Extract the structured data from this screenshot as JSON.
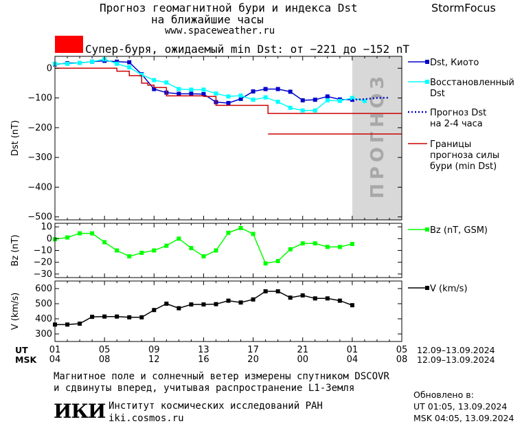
{
  "header": {
    "title_line1": "Прогноз геомагнитной бури и индекса Dst",
    "title_line2": "на ближайшие часы",
    "site": "www.spaceweather.ru",
    "brand": "StormFocus"
  },
  "alert": {
    "color": "#ff0000",
    "text": "Супер-буря, ожидаемый min Dst: от −221 до −152 nT"
  },
  "forecast_label": "ПРОГНОЗ",
  "legend": {
    "dst": "Dst, Киото",
    "restored_1": "Восстановленный",
    "restored_2": "Dst",
    "forecast_1": "Прогноз Dst",
    "forecast_2": "на 2-4 часа",
    "bounds_1": "Границы",
    "bounds_2": "прогноза силы",
    "bounds_3": "бури (min Dst)",
    "bz": "Bz (nT, GSM)",
    "v": "V (km/s)"
  },
  "time_axis": {
    "ut_label": "UT",
    "msk_label": "MSK",
    "ut_ticks": [
      "01",
      "05",
      "09",
      "13",
      "17",
      "21",
      "01",
      "05"
    ],
    "msk_ticks": [
      "04",
      "08",
      "12",
      "16",
      "20",
      "00",
      "04",
      "08"
    ],
    "ut_range": "12.09–13.09.2024",
    "msk_range": "12.09–13.09.2024"
  },
  "footer": {
    "note_1": "Магнитное поле и солнечный ветер измерены спутником DSCOVR",
    "note_2": "и сдвинуты вперед, учитывая распространение L1-Земля",
    "logo": "ИКИ",
    "institute": "Институт космических исследований РАН",
    "institute_url": "iki.cosmos.ru",
    "updated_label": "Обновлено в:",
    "updated_ut": "UT  01:05, 13.09.2024",
    "updated_msk": "MSK 04:05, 13.09.2024"
  },
  "colors": {
    "dst": "#0000cc",
    "restored": "#00ffff",
    "forecast": "#0000cc",
    "bounds": "#cc0000",
    "bz": "#00ff00",
    "v": "#000000",
    "forecast_zone": "#d8d8d8"
  },
  "chart_data": [
    {
      "type": "line",
      "panel": "dst",
      "ylabel": "Dst (nT)",
      "ylim": [
        -510,
        40
      ],
      "yticks": [
        0,
        -100,
        -200,
        -300,
        -400,
        -500
      ],
      "xlim": [
        0,
        28
      ],
      "forecast_zone": [
        24,
        28
      ],
      "series": [
        {
          "name": "Dst, Киото",
          "marker": "square",
          "color": "#0000cc",
          "x": [
            0,
            1,
            2,
            3,
            4,
            5,
            6,
            7,
            8,
            9,
            10,
            11,
            12,
            13,
            14,
            15,
            16,
            17,
            18,
            19,
            20,
            21,
            22,
            23,
            24
          ],
          "y": [
            13,
            17,
            18,
            22,
            25,
            22,
            20,
            -20,
            -70,
            -82,
            -86,
            -86,
            -87,
            -114,
            -117,
            -103,
            -78,
            -70,
            -70,
            -79,
            -108,
            -106,
            -95,
            -105,
            -106
          ]
        },
        {
          "name": "Восстановленный Dst",
          "marker": "square",
          "color": "#00ffff",
          "x": [
            0,
            1,
            2,
            3,
            4,
            5,
            6,
            7,
            8,
            9,
            10,
            11,
            12,
            13,
            14,
            15,
            16,
            17,
            18,
            19,
            20,
            21,
            22,
            23,
            24,
            25
          ],
          "y": [
            15,
            15,
            18,
            22,
            30,
            15,
            3,
            -22,
            -40,
            -48,
            -70,
            -72,
            -72,
            -85,
            -95,
            -92,
            -106,
            -98,
            -113,
            -133,
            -142,
            -142,
            -108,
            -110,
            -100,
            -110
          ]
        },
        {
          "name": "Прогноз Dst на 2-4 часа",
          "style": "dotted",
          "color": "#0000cc",
          "x": [
            24,
            25,
            26,
            27
          ],
          "y": [
            -106,
            -104,
            -100,
            -99
          ]
        },
        {
          "name": "Границы прогноза силы бури (min Dst)",
          "style": "step",
          "color": "#cc0000",
          "x": [
            0,
            4,
            5,
            6,
            7,
            7.5,
            8,
            9,
            10,
            11,
            12,
            13,
            14,
            15,
            16,
            17,
            17.2,
            18,
            28
          ],
          "y": [
            0,
            0,
            -10,
            -25,
            -50,
            -57,
            -65,
            -93,
            -93,
            -93,
            -95,
            -125,
            -125,
            -125,
            -125,
            -125,
            -152,
            -152,
            -152
          ]
        },
        {
          "name": "Границы прогноза силы бури (min Dst)",
          "style": "line",
          "color": "#cc0000",
          "x": [
            17.2,
            28
          ],
          "y": [
            -221,
            -221
          ]
        }
      ]
    },
    {
      "type": "line",
      "panel": "bz",
      "ylabel": "Bz (nT)",
      "ylim": [
        -33,
        13
      ],
      "yticks": [
        10,
        0,
        -10,
        -20,
        -30
      ],
      "xlim": [
        0,
        28
      ],
      "series": [
        {
          "name": "Bz (nT, GSM)",
          "marker": "square",
          "color": "#00ff00",
          "x": [
            0,
            1,
            2,
            3,
            4,
            5,
            6,
            7,
            8,
            9,
            10,
            11,
            12,
            13,
            14,
            15,
            16,
            17,
            18,
            19,
            20,
            21,
            22,
            23,
            24,
            25
          ],
          "y": [
            -0.5,
            1,
            4.5,
            4.5,
            -3,
            -10,
            -15,
            -12,
            -10,
            -6,
            0,
            -8,
            -15,
            -10,
            5,
            9,
            4,
            -21,
            -19,
            -9,
            -4,
            -4,
            -7,
            -7,
            -4.5,
            null
          ]
        }
      ]
    },
    {
      "type": "line",
      "panel": "v",
      "ylabel": "V (km/s)",
      "ylim": [
        250,
        650
      ],
      "yticks": [
        600,
        500,
        400,
        300
      ],
      "xlim": [
        0,
        28
      ],
      "series": [
        {
          "name": "V (km/s)",
          "marker": "square",
          "color": "#000000",
          "x": [
            0,
            1,
            2,
            3,
            4,
            5,
            6,
            7,
            8,
            9,
            10,
            11,
            12,
            13,
            14,
            15,
            16,
            17,
            18,
            19,
            20,
            21,
            22,
            23,
            24
          ],
          "y": [
            362,
            362,
            368,
            413,
            415,
            415,
            410,
            410,
            458,
            500,
            470,
            495,
            495,
            497,
            520,
            508,
            528,
            582,
            582,
            540,
            555,
            535,
            535,
            520,
            490
          ]
        }
      ]
    }
  ]
}
